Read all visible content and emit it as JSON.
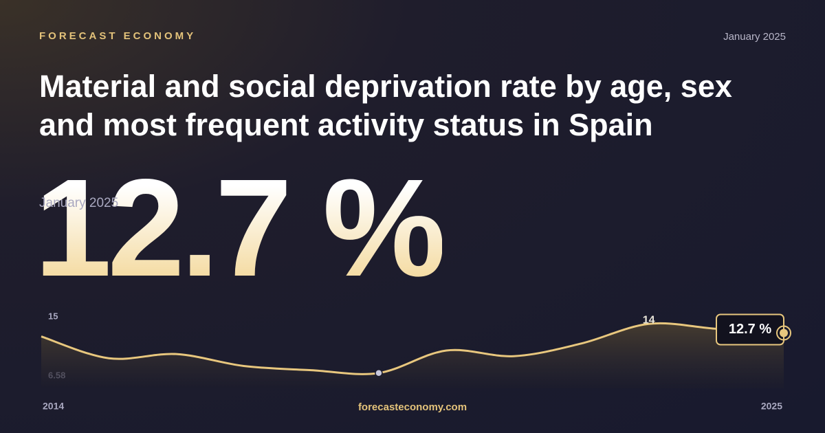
{
  "brand": "FORECAST ECONOMY",
  "date": "January 2025",
  "title": "Material and social deprivation rate by age, sex and most frequent activity status in Spain",
  "headline": {
    "value": "12.7 %",
    "date": "January 2025"
  },
  "footer": "forecasteconomy.com",
  "chart_data": {
    "type": "line",
    "x": [
      "2014",
      null,
      null,
      null,
      null,
      null,
      null,
      null,
      null,
      null,
      null,
      "2025"
    ],
    "values": [
      12.2,
      9.1,
      9.7,
      8.0,
      7.4,
      7.0,
      10.2,
      9.4,
      11.2,
      14,
      13.3,
      12.7
    ],
    "value_labels": [
      null,
      null,
      null,
      null,
      null,
      null,
      null,
      null,
      null,
      "14",
      null,
      "12.7 %"
    ],
    "color": "#e8c77e",
    "ylim": [
      6.58,
      15
    ],
    "yticks": [
      15,
      6.58
    ]
  }
}
